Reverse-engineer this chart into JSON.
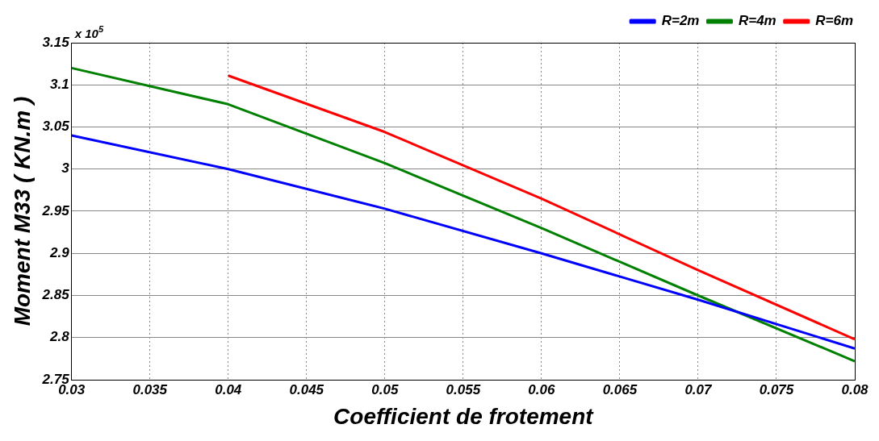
{
  "chart_data": {
    "type": "line",
    "xlabel": "Coefficient de frotement",
    "ylabel": "Moment M33 ( KN.m )",
    "annotations": [
      "x 10$^{5}$"
    ],
    "x": [
      0.03,
      0.04,
      0.05,
      0.06,
      0.07,
      0.08
    ],
    "series": [
      {
        "name": "R=2m",
        "color": "#0000ff",
        "values": [
          3.04,
          3.0,
          2.953,
          2.9,
          2.845,
          2.787
        ]
      },
      {
        "name": "R=4m",
        "color": "#008000",
        "values": [
          3.12,
          3.077,
          3.007,
          2.93,
          2.85,
          2.772
        ]
      },
      {
        "name": "R=6m",
        "color": "#ff0000",
        "values": [
          null,
          3.111,
          3.044,
          2.965,
          2.88,
          2.798
        ]
      }
    ],
    "xlim": [
      0.03,
      0.08
    ],
    "xticks": [
      0.03,
      0.035,
      0.04,
      0.045,
      0.05,
      0.055,
      0.06,
      0.065,
      0.07,
      0.075,
      0.08
    ],
    "ylim": [
      2.75,
      3.15
    ],
    "yticks": [
      2.75,
      2.8,
      2.85,
      2.9,
      2.95,
      3,
      3.05,
      3.1,
      3.15
    ],
    "grid": true,
    "legend": "top right",
    "marker": "none",
    "line_style": "solid"
  }
}
